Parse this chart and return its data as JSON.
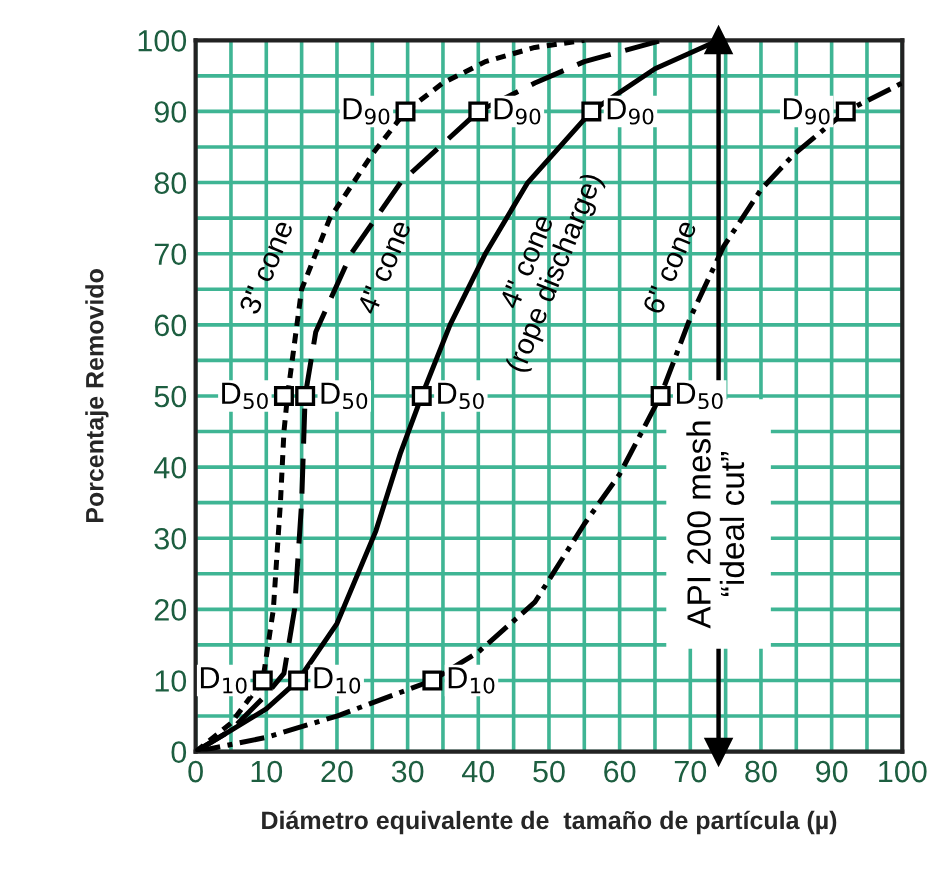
{
  "chart_data": {
    "type": "line",
    "xlabel": "Diámetro equivalente de  tamaño de partícula (µ)",
    "ylabel": "Porcentaje Removido",
    "xlim": [
      0,
      100
    ],
    "ylim": [
      0,
      100
    ],
    "xticks": [
      0,
      {
        "value": 5,
        "label": null
      },
      10,
      {
        "value": 15,
        "label": null
      },
      20,
      {
        "value": 25,
        "label": null
      },
      30,
      {
        "value": 35,
        "label": null
      },
      40,
      {
        "value": 45,
        "label": null
      },
      50,
      {
        "value": 55,
        "label": null
      },
      60,
      {
        "value": 65,
        "label": null
      },
      70,
      {
        "value": 75,
        "label": null
      },
      80,
      {
        "value": 85,
        "label": null
      },
      90,
      {
        "value": 95,
        "label": null
      },
      100
    ],
    "yticks": [
      0,
      {
        "value": 5,
        "label": null
      },
      10,
      {
        "value": 15,
        "label": null
      },
      20,
      {
        "value": 25,
        "label": null
      },
      30,
      {
        "value": 35,
        "label": null
      },
      40,
      {
        "value": 45,
        "label": null
      },
      50,
      {
        "value": 55,
        "label": null
      },
      60,
      {
        "value": 65,
        "label": null
      },
      70,
      {
        "value": 75,
        "label": null
      },
      80,
      {
        "value": 85,
        "label": null
      },
      90,
      {
        "value": 95,
        "label": null
      },
      100
    ],
    "grid": true,
    "series": [
      {
        "name": "3\" cone",
        "color": "#000000",
        "line_style": "dotted",
        "x": [
          0,
          5,
          8,
          9.5,
          11,
          12,
          12.5,
          13,
          15,
          17,
          19,
          25,
          29.7,
          35,
          41,
          48,
          55
        ],
        "values": [
          0,
          4,
          8,
          10,
          20,
          35,
          45,
          50,
          65,
          70,
          75,
          84,
          90,
          94,
          97,
          99,
          100
        ]
      },
      {
        "name": "4\" cone",
        "color": "#000000",
        "line_style": "dashed",
        "x": [
          0,
          5,
          10,
          12.5,
          14,
          15,
          15.5,
          17,
          22,
          29,
          40,
          48,
          55,
          66
        ],
        "values": [
          0,
          3,
          8,
          11,
          20,
          35,
          50,
          59,
          70,
          80,
          90,
          94,
          97,
          100
        ]
      },
      {
        "name": "4\" cone\n(rope discharge)",
        "color": "#000000",
        "line_style": "solid",
        "x": [
          0,
          5,
          10,
          14.5,
          20,
          25.5,
          29,
          32,
          36,
          41,
          47,
          56,
          65,
          74
        ],
        "values": [
          0,
          3,
          6,
          10,
          18,
          31,
          42,
          50,
          60,
          70,
          80,
          90,
          96,
          100
        ]
      },
      {
        "name": "6\" cone",
        "color": "#000000",
        "line_style": "dashdot",
        "x": [
          0,
          10,
          20,
          33.5,
          40,
          48,
          55,
          60,
          65.8,
          70,
          74.7,
          80,
          84.7,
          92,
          100
        ],
        "values": [
          0,
          2,
          5,
          10,
          14,
          21,
          32,
          39,
          50,
          61,
          71,
          79,
          84,
          90,
          94
        ]
      }
    ],
    "ref_lines": [
      {
        "axis": "x",
        "value": 74,
        "label": "API 200 mesh\n“ideal cut”"
      }
    ],
    "annotations": [
      {
        "text": "D$_{10}$",
        "x": 9.5,
        "y": 10
      },
      {
        "text": "D$_{10}$",
        "x": 14.5,
        "y": 10
      },
      {
        "text": "D$_{10}$",
        "x": 33.5,
        "y": 10
      },
      {
        "text": "D$_{50}$",
        "x": 12.5,
        "y": 50
      },
      {
        "text": "D$_{50}$",
        "x": 15.5,
        "y": 50
      },
      {
        "text": "D$_{50}$",
        "x": 32,
        "y": 50
      },
      {
        "text": "D$_{50}$",
        "x": 65.8,
        "y": 50
      },
      {
        "text": "D$_{90}$",
        "x": 29.7,
        "y": 90
      },
      {
        "text": "D$_{90}$",
        "x": 40,
        "y": 90
      },
      {
        "text": "D$_{90}$",
        "x": 56,
        "y": 90
      },
      {
        "text": "D$_{90}$",
        "x": 92,
        "y": 90
      }
    ]
  }
}
